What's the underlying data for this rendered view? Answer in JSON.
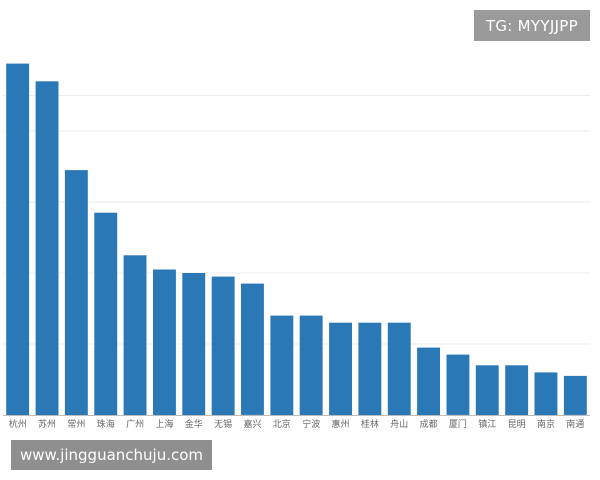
{
  "watermark_top": "TG: MYYJJPP",
  "watermark_bottom": "www.jingguanchuju.com",
  "colors": {
    "bar": "#2b78b6",
    "grid": "#ececec",
    "axis": "#bbbbbb",
    "tick_text": "#666666"
  },
  "chart_data": {
    "type": "bar",
    "title": "",
    "xlabel": "",
    "ylabel": "",
    "grid": true,
    "ylim": [
      0,
      100
    ],
    "categories": [
      "杭州",
      "苏州",
      "常州",
      "珠海",
      "广州",
      "上海",
      "金华",
      "无锡",
      "嘉兴",
      "北京",
      "宁波",
      "惠州",
      "桂林",
      "舟山",
      "成都",
      "厦门",
      "镇江",
      "昆明",
      "南京",
      "南通"
    ],
    "values": [
      99,
      94,
      69,
      57,
      45,
      41,
      40,
      39,
      37,
      28,
      28,
      26,
      26,
      26,
      19,
      17,
      14,
      14,
      12,
      11
    ]
  }
}
